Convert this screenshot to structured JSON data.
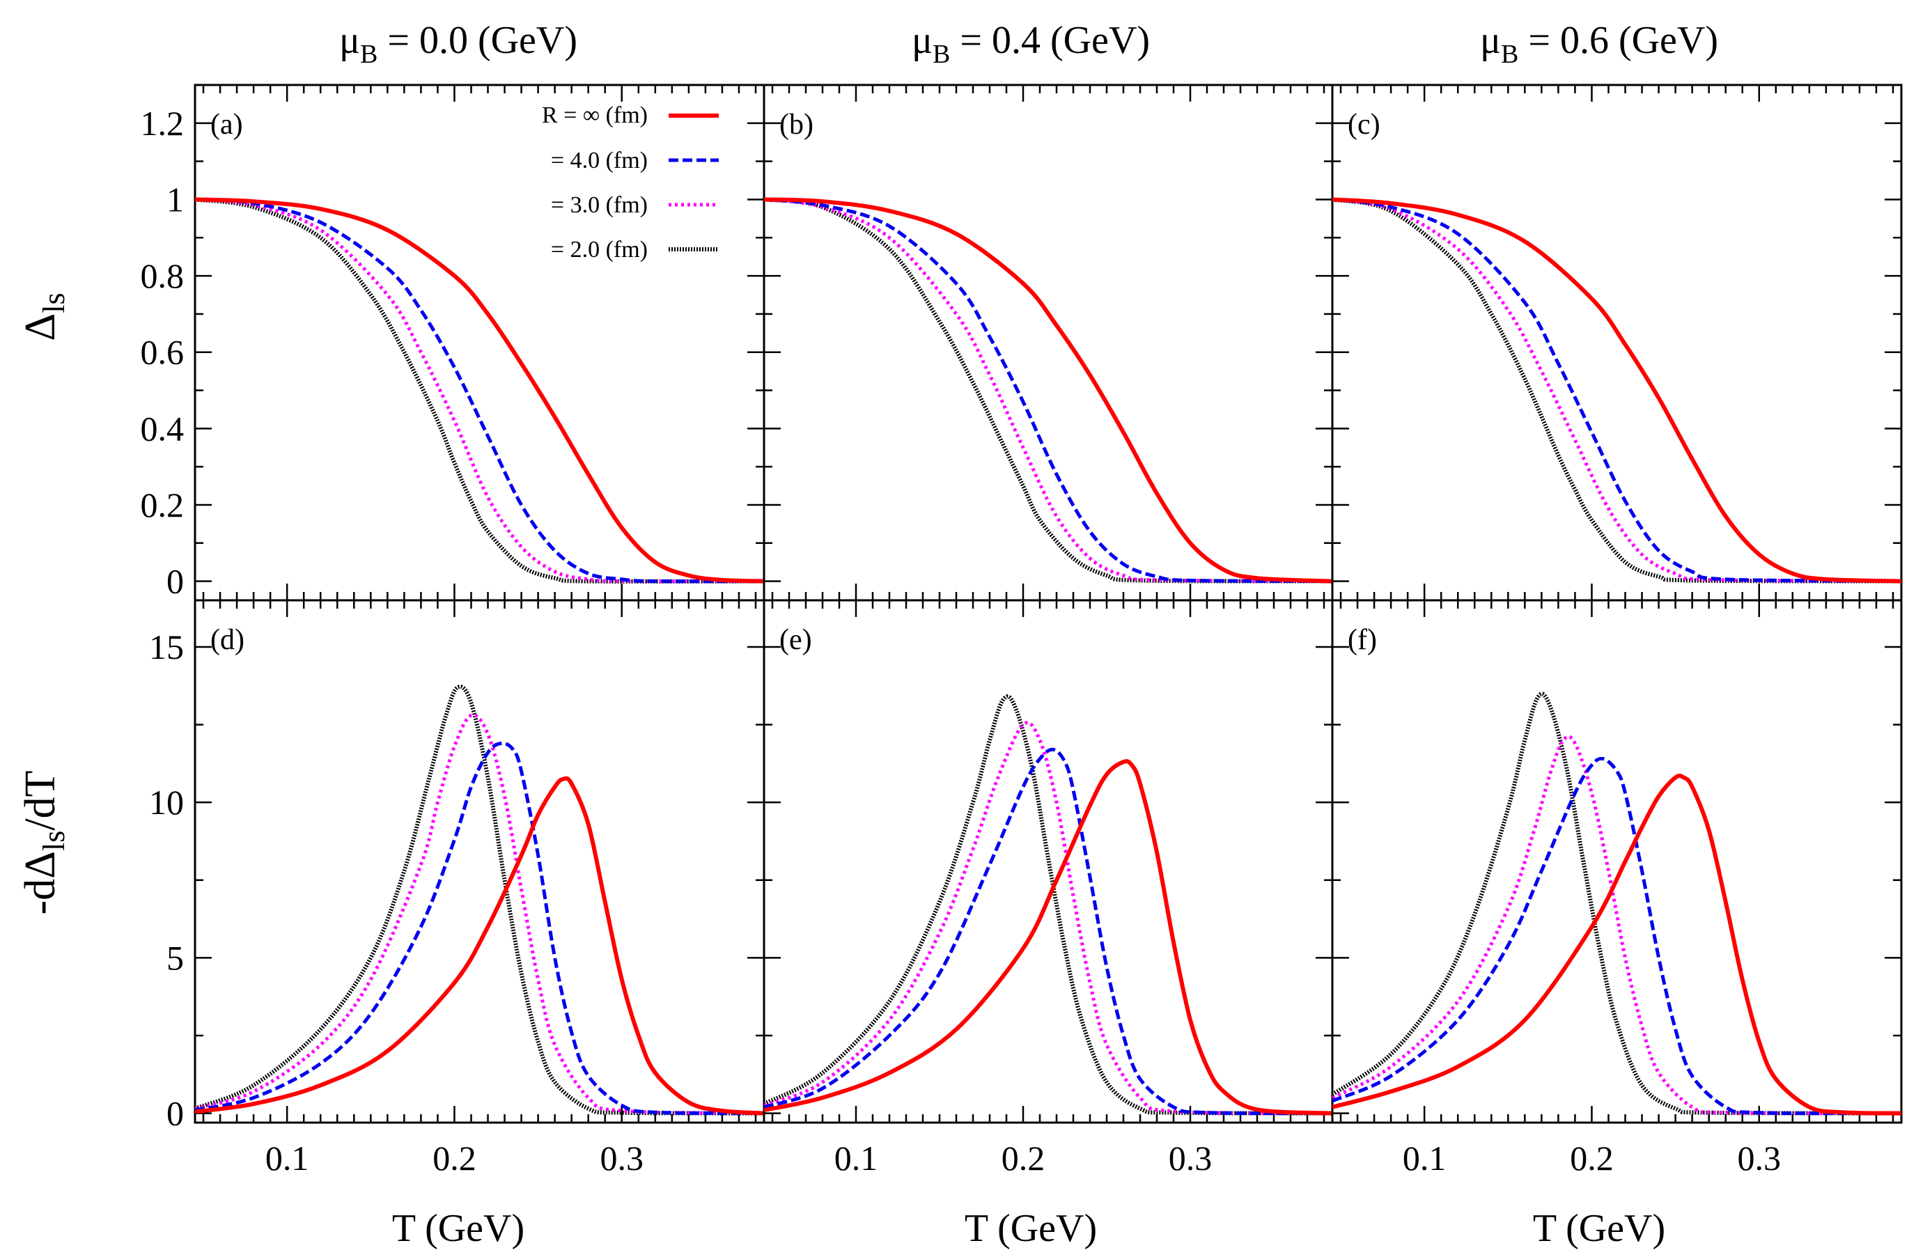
{
  "colors": {
    "R_inf": "#ff0000",
    "R_4": "#0000ee",
    "R_3": "#ff00ff",
    "R_2": "#000000"
  },
  "column_titles": [
    {
      "mu": "μ",
      "sub": "B",
      "text": " = 0.0 (GeV)"
    },
    {
      "mu": "μ",
      "sub": "B",
      "text": " = 0.4 (GeV)"
    },
    {
      "mu": "μ",
      "sub": "B",
      "text": " = 0.6 (GeV)"
    }
  ],
  "row_titles": {
    "top": {
      "main": "Δ",
      "sub": "ls"
    },
    "bottom": {
      "pre": "-dΔ",
      "sub": "ls",
      "post": "/dT"
    }
  },
  "x_title": "T (GeV)",
  "panel_labels": [
    "(a)",
    "(b)",
    "(c)",
    "(d)",
    "(e)",
    "(f)"
  ],
  "legend": [
    {
      "label": "R = ∞   (fm)",
      "series": "R_inf",
      "style": "solid"
    },
    {
      "label": "= 4.0 (fm)",
      "series": "R_4",
      "style": "dashed"
    },
    {
      "label": "= 3.0 (fm)",
      "series": "R_3",
      "style": "dotted"
    },
    {
      "label": "= 2.0 (fm)",
      "series": "R_2",
      "style": "dense-dotted"
    }
  ],
  "chart_data": [
    {
      "type": "line",
      "panel": "(a)",
      "title": "μB = 0.0 (GeV)",
      "xlabel": "",
      "ylabel": "Δls",
      "xlim": [
        0.045,
        0.385
      ],
      "ylim": [
        -0.05,
        1.3
      ],
      "x_ticks": [
        0.1,
        0.2,
        0.3
      ],
      "y_ticks": [
        0,
        0.2,
        0.4,
        0.6,
        0.8,
        1,
        1.2
      ],
      "y_tick_labels": [
        "0",
        "0.2",
        "0.4",
        "0.6",
        "0.8",
        "1",
        "1.2"
      ],
      "series": [
        {
          "name": "R = ∞ (fm)",
          "key": "R_inf",
          "x": [
            0.045,
            0.08,
            0.12,
            0.16,
            0.2,
            0.22,
            0.24,
            0.26,
            0.28,
            0.3,
            0.32,
            0.34,
            0.36,
            0.385
          ],
          "y": [
            1.0,
            0.995,
            0.975,
            0.92,
            0.8,
            0.7,
            0.57,
            0.43,
            0.28,
            0.14,
            0.05,
            0.015,
            0.003,
            0.0
          ]
        },
        {
          "name": "R = 4.0 (fm)",
          "key": "R_4",
          "x": [
            0.045,
            0.08,
            0.12,
            0.16,
            0.18,
            0.2,
            0.22,
            0.24,
            0.26,
            0.28,
            0.3,
            0.32,
            0.385
          ],
          "y": [
            1.0,
            0.99,
            0.94,
            0.82,
            0.71,
            0.56,
            0.38,
            0.2,
            0.08,
            0.02,
            0.005,
            0.0,
            0.0
          ]
        },
        {
          "name": "R = 3.0 (fm)",
          "key": "R_3",
          "x": [
            0.045,
            0.08,
            0.12,
            0.16,
            0.18,
            0.2,
            0.22,
            0.24,
            0.26,
            0.28,
            0.3,
            0.385
          ],
          "y": [
            1.0,
            0.985,
            0.92,
            0.75,
            0.6,
            0.42,
            0.22,
            0.09,
            0.025,
            0.005,
            0.0,
            0.0
          ]
        },
        {
          "name": "R = 2.0 (fm)",
          "key": "R_2",
          "x": [
            0.045,
            0.08,
            0.12,
            0.15,
            0.17,
            0.19,
            0.2,
            0.21,
            0.22,
            0.24,
            0.26,
            0.28,
            0.385
          ],
          "y": [
            1.0,
            0.98,
            0.9,
            0.75,
            0.6,
            0.42,
            0.31,
            0.21,
            0.13,
            0.04,
            0.008,
            0.0,
            0.0
          ]
        }
      ]
    },
    {
      "type": "line",
      "panel": "(b)",
      "title": "μB = 0.4 (GeV)",
      "xlabel": "",
      "ylabel": "",
      "xlim": [
        0.045,
        0.385
      ],
      "ylim": [
        -0.05,
        1.3
      ],
      "x_ticks": [
        0.1,
        0.2,
        0.3
      ],
      "y_ticks": [
        0,
        0.2,
        0.4,
        0.6,
        0.8,
        1,
        1.2
      ],
      "series": [
        {
          "name": "R = ∞ (fm)",
          "key": "R_inf",
          "x": [
            0.045,
            0.08,
            0.12,
            0.16,
            0.2,
            0.22,
            0.24,
            0.26,
            0.28,
            0.3,
            0.32,
            0.34,
            0.385
          ],
          "y": [
            1.0,
            0.995,
            0.97,
            0.91,
            0.78,
            0.67,
            0.54,
            0.39,
            0.23,
            0.1,
            0.03,
            0.008,
            0.0
          ]
        },
        {
          "name": "R = 4.0 (fm)",
          "key": "R_4",
          "x": [
            0.045,
            0.08,
            0.12,
            0.16,
            0.18,
            0.2,
            0.22,
            0.24,
            0.26,
            0.28,
            0.3,
            0.385
          ],
          "y": [
            1.0,
            0.985,
            0.93,
            0.78,
            0.64,
            0.47,
            0.28,
            0.13,
            0.045,
            0.012,
            0.002,
            0.0
          ]
        },
        {
          "name": "R = 3.0 (fm)",
          "key": "R_3",
          "x": [
            0.045,
            0.08,
            0.12,
            0.16,
            0.18,
            0.2,
            0.22,
            0.24,
            0.26,
            0.28,
            0.385
          ],
          "y": [
            1.0,
            0.98,
            0.9,
            0.7,
            0.54,
            0.35,
            0.17,
            0.06,
            0.015,
            0.003,
            0.0
          ]
        },
        {
          "name": "R = 2.0 (fm)",
          "key": "R_2",
          "x": [
            0.045,
            0.08,
            0.12,
            0.15,
            0.17,
            0.19,
            0.2,
            0.21,
            0.23,
            0.25,
            0.27,
            0.385
          ],
          "y": [
            1.0,
            0.98,
            0.87,
            0.68,
            0.52,
            0.34,
            0.25,
            0.16,
            0.06,
            0.015,
            0.002,
            0.0
          ]
        }
      ]
    },
    {
      "type": "line",
      "panel": "(c)",
      "title": "μB = 0.6 (GeV)",
      "xlabel": "",
      "ylabel": "",
      "xlim": [
        0.045,
        0.385
      ],
      "ylim": [
        -0.05,
        1.3
      ],
      "x_ticks": [
        0.1,
        0.2,
        0.3
      ],
      "y_ticks": [
        0,
        0.2,
        0.4,
        0.6,
        0.8,
        1,
        1.2
      ],
      "series": [
        {
          "name": "R = ∞ (fm)",
          "key": "R_inf",
          "x": [
            0.045,
            0.08,
            0.12,
            0.16,
            0.2,
            0.22,
            0.24,
            0.26,
            0.28,
            0.3,
            0.32,
            0.34,
            0.385
          ],
          "y": [
            1.0,
            0.99,
            0.96,
            0.89,
            0.74,
            0.62,
            0.48,
            0.32,
            0.17,
            0.07,
            0.02,
            0.005,
            0.0
          ]
        },
        {
          "name": "R = 4.0 (fm)",
          "key": "R_4",
          "x": [
            0.045,
            0.08,
            0.12,
            0.16,
            0.18,
            0.2,
            0.22,
            0.24,
            0.26,
            0.28,
            0.385
          ],
          "y": [
            1.0,
            0.98,
            0.91,
            0.73,
            0.57,
            0.39,
            0.21,
            0.08,
            0.025,
            0.005,
            0.0
          ]
        },
        {
          "name": "R = 3.0 (fm)",
          "key": "R_3",
          "x": [
            0.045,
            0.08,
            0.12,
            0.15,
            0.17,
            0.19,
            0.21,
            0.23,
            0.25,
            0.27,
            0.385
          ],
          "y": [
            1.0,
            0.975,
            0.87,
            0.71,
            0.55,
            0.37,
            0.19,
            0.07,
            0.02,
            0.004,
            0.0
          ]
        },
        {
          "name": "R = 2.0 (fm)",
          "key": "R_2",
          "x": [
            0.045,
            0.08,
            0.12,
            0.14,
            0.16,
            0.18,
            0.19,
            0.2,
            0.22,
            0.24,
            0.26,
            0.385
          ],
          "y": [
            1.0,
            0.97,
            0.83,
            0.7,
            0.53,
            0.33,
            0.24,
            0.16,
            0.05,
            0.012,
            0.002,
            0.0
          ]
        }
      ]
    },
    {
      "type": "line",
      "panel": "(d)",
      "title": "",
      "xlabel": "T (GeV)",
      "ylabel": "-dΔls/dT",
      "xlim": [
        0.045,
        0.385
      ],
      "ylim": [
        -0.3,
        16.5
      ],
      "x_ticks": [
        0.1,
        0.2,
        0.3
      ],
      "y_ticks": [
        0,
        5,
        10,
        15
      ],
      "x_tick_labels": [
        "0.1",
        "0.2",
        "0.3"
      ],
      "y_tick_labels": [
        "0",
        "5",
        "10",
        "15"
      ],
      "series": [
        {
          "name": "R = ∞ (fm)",
          "key": "R_inf",
          "x": [
            0.045,
            0.08,
            0.12,
            0.16,
            0.2,
            0.22,
            0.24,
            0.25,
            0.26,
            0.265,
            0.27,
            0.28,
            0.29,
            0.3,
            0.31,
            0.32,
            0.34,
            0.36,
            0.385
          ],
          "y": [
            0.05,
            0.3,
            0.9,
            2.0,
            4.2,
            6.0,
            8.3,
            9.6,
            10.5,
            10.75,
            10.6,
            9.3,
            6.8,
            4.3,
            2.5,
            1.3,
            0.35,
            0.08,
            0.0
          ]
        },
        {
          "name": "R = 4.0 (fm)",
          "key": "R_4",
          "x": [
            0.045,
            0.08,
            0.12,
            0.15,
            0.18,
            0.2,
            0.21,
            0.22,
            0.228,
            0.235,
            0.24,
            0.25,
            0.26,
            0.27,
            0.28,
            0.3,
            0.32,
            0.385
          ],
          "y": [
            0.1,
            0.5,
            1.6,
            3.2,
            6.0,
            8.8,
            10.5,
            11.6,
            11.9,
            11.7,
            11.0,
            8.3,
            5.0,
            2.6,
            1.2,
            0.25,
            0.03,
            0.0
          ]
        },
        {
          "name": "R = 3.0 (fm)",
          "key": "R_3",
          "x": [
            0.045,
            0.08,
            0.12,
            0.15,
            0.18,
            0.19,
            0.2,
            0.21,
            0.22,
            0.23,
            0.24,
            0.25,
            0.26,
            0.28,
            0.3,
            0.385
          ],
          "y": [
            0.15,
            0.7,
            2.2,
            4.3,
            8.0,
            10.0,
            11.8,
            12.8,
            12.2,
            10.2,
            7.2,
            4.3,
            2.2,
            0.5,
            0.08,
            0.0
          ]
        },
        {
          "name": "R = 2.0 (fm)",
          "key": "R_2",
          "x": [
            0.045,
            0.08,
            0.12,
            0.15,
            0.17,
            0.185,
            0.195,
            0.202,
            0.21,
            0.22,
            0.23,
            0.24,
            0.25,
            0.26,
            0.28,
            0.3,
            0.385
          ],
          "y": [
            0.15,
            0.9,
            2.7,
            5.0,
            7.8,
            10.8,
            12.8,
            13.7,
            13.2,
            10.8,
            7.5,
            4.5,
            2.3,
            1.0,
            0.15,
            0.02,
            0.0
          ]
        }
      ]
    },
    {
      "type": "line",
      "panel": "(e)",
      "title": "",
      "xlabel": "T (GeV)",
      "ylabel": "",
      "xlim": [
        0.045,
        0.385
      ],
      "ylim": [
        -0.3,
        16.5
      ],
      "x_ticks": [
        0.1,
        0.2,
        0.3
      ],
      "y_ticks": [
        0,
        5,
        10,
        15
      ],
      "x_tick_labels": [
        "0.1",
        "0.2",
        "0.3"
      ],
      "series": [
        {
          "name": "R = ∞ (fm)",
          "key": "R_inf",
          "x": [
            0.045,
            0.08,
            0.12,
            0.16,
            0.2,
            0.22,
            0.24,
            0.25,
            0.26,
            0.265,
            0.27,
            0.28,
            0.29,
            0.3,
            0.31,
            0.32,
            0.34,
            0.385
          ],
          "y": [
            0.1,
            0.5,
            1.3,
            2.7,
            5.3,
            7.5,
            9.9,
            10.9,
            11.3,
            11.2,
            10.6,
            8.4,
            5.5,
            3.0,
            1.5,
            0.7,
            0.12,
            0.0
          ]
        },
        {
          "name": "R = 4.0 (fm)",
          "key": "R_4",
          "x": [
            0.045,
            0.08,
            0.12,
            0.15,
            0.18,
            0.2,
            0.21,
            0.218,
            0.225,
            0.23,
            0.24,
            0.25,
            0.26,
            0.27,
            0.29,
            0.31,
            0.385
          ],
          "y": [
            0.2,
            0.8,
            2.5,
            4.5,
            8.0,
            10.5,
            11.4,
            11.7,
            11.3,
            10.4,
            7.6,
            4.7,
            2.5,
            1.1,
            0.2,
            0.02,
            0.0
          ]
        },
        {
          "name": "R = 3.0 (fm)",
          "key": "R_3",
          "x": [
            0.045,
            0.08,
            0.12,
            0.15,
            0.17,
            0.185,
            0.2,
            0.21,
            0.22,
            0.23,
            0.24,
            0.25,
            0.27,
            0.29,
            0.385
          ],
          "y": [
            0.25,
            1.0,
            3.0,
            5.8,
            8.5,
            10.8,
            12.5,
            12.0,
            10.0,
            7.0,
            4.2,
            2.2,
            0.5,
            0.06,
            0.0
          ]
        },
        {
          "name": "R = 2.0 (fm)",
          "key": "R_2",
          "x": [
            0.045,
            0.08,
            0.12,
            0.15,
            0.17,
            0.18,
            0.188,
            0.195,
            0.205,
            0.215,
            0.225,
            0.235,
            0.25,
            0.27,
            0.29,
            0.385
          ],
          "y": [
            0.3,
            1.3,
            3.6,
            6.8,
            10.0,
            12.0,
            13.3,
            13.1,
            11.2,
            8.2,
            5.3,
            3.0,
            1.0,
            0.15,
            0.02,
            0.0
          ]
        }
      ]
    },
    {
      "type": "line",
      "panel": "(f)",
      "title": "",
      "xlabel": "T (GeV)",
      "ylabel": "",
      "xlim": [
        0.045,
        0.385
      ],
      "ylim": [
        -0.3,
        16.5
      ],
      "x_ticks": [
        0.1,
        0.2,
        0.3
      ],
      "y_ticks": [
        0,
        5,
        10,
        15
      ],
      "x_tick_labels": [
        "0.1",
        "0.2",
        "0.3"
      ],
      "series": [
        {
          "name": "R = ∞ (fm)",
          "key": "R_inf",
          "x": [
            0.045,
            0.08,
            0.12,
            0.16,
            0.2,
            0.22,
            0.23,
            0.24,
            0.25,
            0.255,
            0.26,
            0.27,
            0.28,
            0.29,
            0.3,
            0.31,
            0.33,
            0.35,
            0.385
          ],
          "y": [
            0.2,
            0.7,
            1.5,
            3.0,
            6.0,
            8.1,
            9.2,
            10.2,
            10.8,
            10.8,
            10.5,
            9.1,
            6.8,
            4.3,
            2.3,
            1.1,
            0.2,
            0.03,
            0.0
          ]
        },
        {
          "name": "R = 4.0 (fm)",
          "key": "R_4",
          "x": [
            0.045,
            0.08,
            0.12,
            0.15,
            0.17,
            0.19,
            0.2,
            0.207,
            0.215,
            0.22,
            0.23,
            0.24,
            0.25,
            0.26,
            0.28,
            0.3,
            0.385
          ],
          "y": [
            0.4,
            1.2,
            3.0,
            5.4,
            7.8,
            10.3,
            11.2,
            11.4,
            11.0,
            10.3,
            7.8,
            5.0,
            2.7,
            1.2,
            0.2,
            0.02,
            0.0
          ]
        },
        {
          "name": "R = 3.0 (fm)",
          "key": "R_3",
          "x": [
            0.045,
            0.08,
            0.12,
            0.15,
            0.165,
            0.175,
            0.183,
            0.19,
            0.2,
            0.21,
            0.22,
            0.23,
            0.24,
            0.26,
            0.28,
            0.385
          ],
          "y": [
            0.5,
            1.5,
            3.6,
            6.6,
            9.0,
            10.9,
            12.0,
            11.9,
            10.3,
            7.8,
            5.0,
            2.8,
            1.3,
            0.2,
            0.02,
            0.0
          ]
        },
        {
          "name": "R = 2.0 (fm)",
          "key": "R_2",
          "x": [
            0.045,
            0.08,
            0.11,
            0.13,
            0.15,
            0.16,
            0.168,
            0.175,
            0.185,
            0.195,
            0.205,
            0.215,
            0.23,
            0.25,
            0.27,
            0.385
          ],
          "y": [
            0.6,
            1.9,
            4.0,
            6.4,
            9.8,
            12.0,
            13.4,
            13.1,
            11.1,
            8.1,
            5.2,
            2.9,
            0.9,
            0.15,
            0.02,
            0.0
          ]
        }
      ]
    }
  ]
}
